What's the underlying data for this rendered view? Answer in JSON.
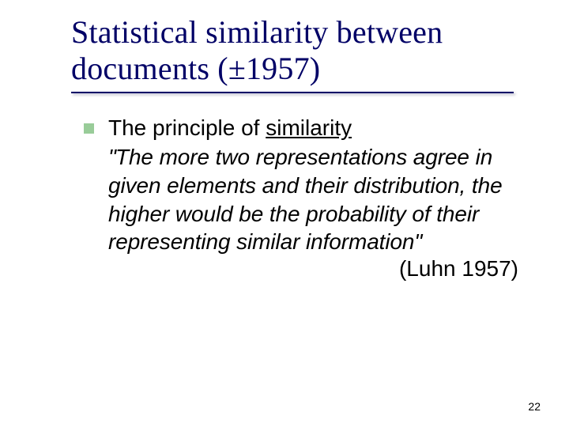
{
  "slide": {
    "title_line1": "Statistical similarity between",
    "title_line2": "documents (±1957)",
    "accent_color": "#000066",
    "bullet_color": "#99cc99",
    "background_color": "#ffffff",
    "title_font": "Times New Roman",
    "body_font": "Verdana",
    "title_fontsize_pt": 30,
    "body_fontsize_pt": 21,
    "principle_prefix": "The principle of ",
    "principle_underlined": "similarity",
    "quote_open": "\"",
    "quote_body": "The more two representations agree in given elements and their distribution, the higher would be the probability of their representing similar information",
    "quote_close": "\"",
    "citation": "(Luhn 1957)",
    "page_number": "22"
  }
}
